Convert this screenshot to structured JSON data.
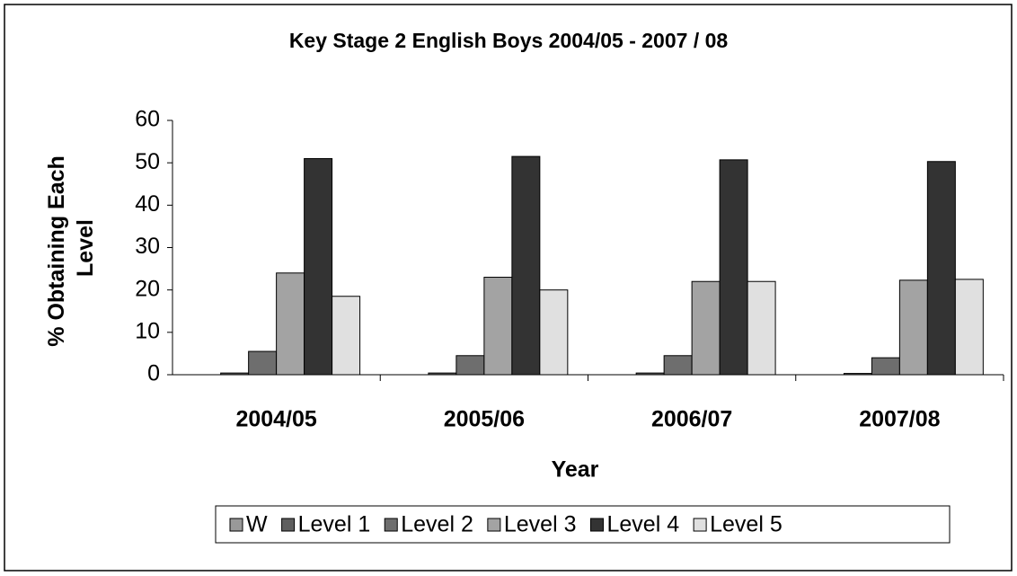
{
  "chart_data": {
    "type": "bar",
    "title": "Key Stage 2 English Boys 2004/05 - 2007 / 08",
    "x_label": "Year",
    "y_label": [
      "% Obtaining Each",
      "Level"
    ],
    "categories": [
      "2004/05",
      "2005/06",
      "2006/07",
      "2007/08"
    ],
    "series": [
      {
        "name": "W",
        "color": "#999999",
        "values": [
          0,
          0,
          0,
          0
        ]
      },
      {
        "name": "Level 1",
        "color": "#5f5f5f",
        "values": [
          0.4,
          0.4,
          0.4,
          0.3
        ]
      },
      {
        "name": "Level 2",
        "color": "#6e6e6e",
        "values": [
          5.5,
          4.5,
          4.5,
          4
        ]
      },
      {
        "name": "Level 3",
        "color": "#a3a3a3",
        "values": [
          24,
          23,
          22,
          22.3
        ]
      },
      {
        "name": "Level 4",
        "color": "#333333",
        "values": [
          51,
          51.5,
          50.7,
          50.3
        ]
      },
      {
        "name": "Level 5",
        "color": "#e0e0e0",
        "values": [
          18.5,
          20,
          22,
          22.5
        ]
      }
    ],
    "ylim": [
      0,
      60
    ],
    "yticks": [
      0,
      10,
      20,
      30,
      40,
      50,
      60
    ],
    "grid": false,
    "legend": "bottom"
  }
}
